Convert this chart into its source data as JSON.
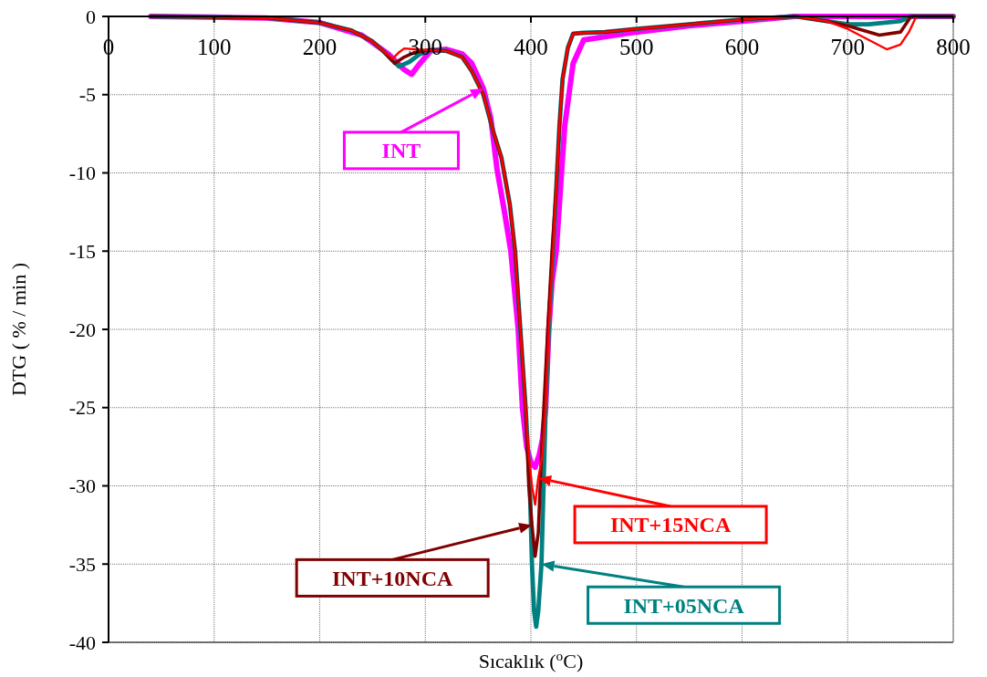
{
  "chart_data": {
    "type": "line",
    "xlabel": "Sıcaklık ($^{o}$C)",
    "ylabel": "DTG ( % / min )",
    "xlim": [
      0,
      800
    ],
    "xticks": [
      0,
      100,
      200,
      300,
      400,
      500,
      600,
      700,
      800
    ],
    "ylim": [
      -40,
      0
    ],
    "yticks": [
      -40,
      -35,
      -30,
      -25,
      -20,
      -15,
      -10,
      -5,
      0
    ],
    "grid": true,
    "marker": "none",
    "line_style": "solid",
    "series": [
      {
        "name": "INT",
        "color": "#ff00ff",
        "x": [
          40,
          100,
          150,
          200,
          240,
          265,
          280,
          287,
          295,
          305,
          320,
          335,
          344,
          355,
          362,
          368,
          375,
          381,
          388,
          392,
          396,
          400,
          404,
          408,
          411,
          414,
          417,
          420,
          424,
          428,
          432,
          440,
          450,
          470,
          500,
          550,
          600,
          650,
          800
        ],
        "values": [
          0,
          -0.05,
          -0.1,
          -0.4,
          -1.2,
          -2.4,
          -3.4,
          -3.7,
          -3.0,
          -2.2,
          -2.1,
          -2.4,
          -3.0,
          -4.6,
          -6.5,
          -9.8,
          -12.5,
          -15,
          -20,
          -25,
          -27.5,
          -28.5,
          -28.8,
          -28,
          -27,
          -25,
          -20,
          -17,
          -15,
          -11,
          -7,
          -3,
          -1.5,
          -1.3,
          -1.0,
          -0.6,
          -0.3,
          0,
          0
        ]
      },
      {
        "name": "INT+05NCA",
        "color": "#008080",
        "x": [
          40,
          100,
          150,
          200,
          230,
          250,
          260,
          275,
          285,
          295,
          305,
          320,
          335,
          344,
          355,
          365,
          372,
          380,
          385,
          390,
          395,
          399,
          401,
          403,
          405,
          407,
          410,
          412,
          414,
          417,
          421,
          424,
          427,
          430,
          435,
          440,
          450,
          470,
          500,
          550,
          600,
          650,
          680,
          700,
          720,
          750,
          760,
          800
        ],
        "values": [
          0,
          -0.05,
          -0.1,
          -0.4,
          -0.9,
          -1.6,
          -2.2,
          -3.2,
          -2.9,
          -2.4,
          -2.15,
          -2.2,
          -2.6,
          -3.5,
          -5,
          -7.5,
          -9,
          -12,
          -15,
          -20,
          -25,
          -30,
          -35,
          -38,
          -39,
          -38,
          -35,
          -30,
          -25,
          -20,
          -15,
          -11,
          -7,
          -4,
          -2,
          -1.1,
          -1.05,
          -1.0,
          -0.8,
          -0.5,
          -0.2,
          0,
          -0.3,
          -0.5,
          -0.5,
          -0.3,
          0,
          0
        ]
      },
      {
        "name": "INT+10NCA",
        "color": "#800000",
        "x": [
          40,
          100,
          150,
          200,
          230,
          250,
          260,
          271,
          280,
          290,
          303,
          320,
          335,
          344,
          355,
          365,
          372,
          380,
          385,
          390,
          395,
          398,
          401,
          404,
          407,
          410,
          413,
          416,
          420,
          424,
          427,
          430,
          435,
          440,
          450,
          470,
          500,
          550,
          600,
          650,
          680,
          700,
          730,
          750,
          760,
          800
        ],
        "values": [
          0,
          -0.05,
          -0.1,
          -0.4,
          -0.9,
          -1.6,
          -2.2,
          -3.0,
          -2.6,
          -2.3,
          -2.15,
          -2.2,
          -2.6,
          -3.5,
          -5,
          -7.5,
          -9,
          -12,
          -15,
          -20,
          -25,
          -30,
          -32.5,
          -34.5,
          -33,
          -28,
          -24,
          -20,
          -15,
          -11,
          -7,
          -4,
          -2,
          -1.1,
          -1.05,
          -1.0,
          -0.8,
          -0.5,
          -0.2,
          0,
          -0.3,
          -0.6,
          -1.2,
          -1.0,
          0,
          0
        ]
      },
      {
        "name": "INT+15NCA",
        "color": "#ff0000",
        "x": [
          40,
          100,
          150,
          200,
          230,
          250,
          260,
          269,
          275,
          280,
          290,
          303,
          320,
          335,
          344,
          355,
          365,
          372,
          380,
          385,
          390,
          395,
          398,
          401,
          404,
          407,
          411,
          414,
          417,
          421,
          424,
          427,
          430,
          435,
          440,
          450,
          470,
          500,
          550,
          600,
          650,
          680,
          700,
          720,
          737,
          750,
          758,
          765,
          800
        ],
        "values": [
          0,
          -0.05,
          -0.1,
          -0.4,
          -0.9,
          -1.6,
          -2.2,
          -2.7,
          -2.3,
          -2.05,
          -2.1,
          -2.15,
          -2.2,
          -2.6,
          -3.5,
          -5,
          -7.5,
          -9,
          -12,
          -15,
          -20,
          -25,
          -28,
          -30,
          -31.2,
          -29.5,
          -28,
          -25,
          -20,
          -15,
          -11,
          -7,
          -4,
          -2,
          -1.1,
          -1.05,
          -1.0,
          -0.8,
          -0.5,
          -0.2,
          0,
          -0.3,
          -0.8,
          -1.5,
          -2.1,
          -1.8,
          -1,
          0,
          0
        ]
      }
    ]
  }
}
